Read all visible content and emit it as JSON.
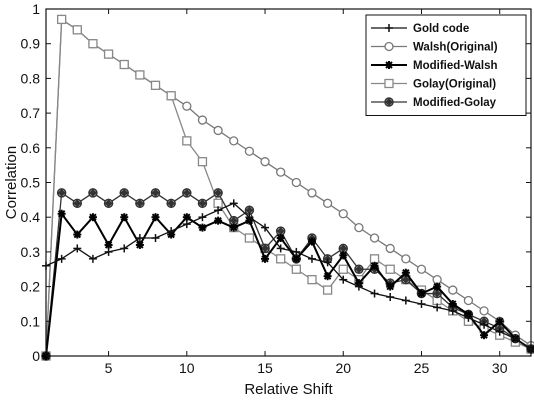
{
  "chart_data": {
    "type": "line",
    "xlabel": "Relative Shift",
    "ylabel": "Correlation",
    "xlim": [
      1,
      32
    ],
    "ylim": [
      0,
      1
    ],
    "x_ticks": [
      5,
      10,
      15,
      20,
      25,
      30
    ],
    "x_tick_labels": [
      "5",
      "10",
      "15",
      "20",
      "25",
      "30"
    ],
    "y_ticks": [
      0,
      0.1,
      0.2,
      0.3,
      0.4,
      0.5,
      0.6,
      0.7,
      0.8,
      0.9,
      1
    ],
    "y_tick_labels": [
      "0",
      "0.1",
      "0.2",
      "0.3",
      "0.4",
      "0.5",
      "0.6",
      "0.7",
      "0.8",
      "0.9",
      "1"
    ],
    "grid": false,
    "legend_position": "top-right",
    "series": [
      {
        "name": "Gold code",
        "marker": "plus",
        "color": "#111111",
        "x": [
          1,
          2,
          3,
          4,
          5,
          6,
          7,
          8,
          9,
          10,
          11,
          12,
          13,
          14,
          15,
          16,
          17,
          18,
          19,
          20,
          21,
          22,
          23,
          24,
          25,
          26,
          27,
          28,
          29,
          30,
          31,
          32
        ],
        "values": [
          0.26,
          0.28,
          0.31,
          0.28,
          0.3,
          0.31,
          0.34,
          0.34,
          0.36,
          0.38,
          0.4,
          0.42,
          0.44,
          0.4,
          0.37,
          0.31,
          0.3,
          0.28,
          0.27,
          0.22,
          0.2,
          0.18,
          0.17,
          0.16,
          0.15,
          0.14,
          0.13,
          0.11,
          0.09,
          0.07,
          0.05,
          0.02
        ]
      },
      {
        "name": "Walsh(Original)",
        "marker": "circle",
        "color": "#777777",
        "x": [
          1,
          2,
          3,
          4,
          5,
          6,
          7,
          8,
          9,
          10,
          11,
          12,
          13,
          14,
          15,
          16,
          17,
          18,
          19,
          20,
          21,
          22,
          23,
          24,
          25,
          26,
          27,
          28,
          29,
          30,
          31,
          32
        ],
        "values": [
          0.0,
          0.97,
          0.94,
          0.9,
          0.87,
          0.84,
          0.81,
          0.78,
          0.75,
          0.72,
          0.68,
          0.65,
          0.62,
          0.59,
          0.56,
          0.53,
          0.5,
          0.47,
          0.44,
          0.41,
          0.37,
          0.34,
          0.31,
          0.28,
          0.25,
          0.22,
          0.19,
          0.16,
          0.13,
          0.1,
          0.06,
          0.03
        ]
      },
      {
        "name": "Modified-Walsh",
        "marker": "star",
        "color": "#000000",
        "x": [
          1,
          2,
          3,
          4,
          5,
          6,
          7,
          8,
          9,
          10,
          11,
          12,
          13,
          14,
          15,
          16,
          17,
          18,
          19,
          20,
          21,
          22,
          23,
          24,
          25,
          26,
          27,
          28,
          29,
          30,
          31,
          32
        ],
        "values": [
          0.0,
          0.41,
          0.35,
          0.4,
          0.32,
          0.4,
          0.32,
          0.4,
          0.35,
          0.4,
          0.37,
          0.39,
          0.37,
          0.39,
          0.28,
          0.34,
          0.28,
          0.33,
          0.23,
          0.29,
          0.21,
          0.26,
          0.2,
          0.24,
          0.18,
          0.2,
          0.15,
          0.12,
          0.06,
          0.1,
          0.05,
          0.02
        ]
      },
      {
        "name": "Golay(Original)",
        "marker": "square",
        "color": "#888888",
        "x": [
          1,
          2,
          3,
          4,
          5,
          6,
          7,
          8,
          9,
          10,
          11,
          12,
          13,
          14,
          15,
          16,
          17,
          18,
          19,
          20,
          21,
          22,
          23,
          24,
          25,
          26,
          27,
          28,
          29,
          30,
          31,
          32
        ],
        "values": [
          0.0,
          0.97,
          0.94,
          0.9,
          0.87,
          0.84,
          0.81,
          0.78,
          0.75,
          0.62,
          0.56,
          0.44,
          0.37,
          0.34,
          0.31,
          0.28,
          0.25,
          0.22,
          0.19,
          0.25,
          0.22,
          0.28,
          0.25,
          0.22,
          0.19,
          0.16,
          0.13,
          0.1,
          0.08,
          0.06,
          0.04,
          0.02
        ]
      },
      {
        "name": "Modified-Golay",
        "marker": "diamond-circle",
        "color": "#333333",
        "x": [
          1,
          2,
          3,
          4,
          5,
          6,
          7,
          8,
          9,
          10,
          11,
          12,
          13,
          14,
          15,
          16,
          17,
          18,
          19,
          20,
          21,
          22,
          23,
          24,
          25,
          26,
          27,
          28,
          29,
          30,
          31,
          32
        ],
        "values": [
          0.0,
          0.47,
          0.44,
          0.47,
          0.44,
          0.47,
          0.44,
          0.47,
          0.44,
          0.47,
          0.44,
          0.47,
          0.39,
          0.42,
          0.31,
          0.36,
          0.28,
          0.34,
          0.28,
          0.31,
          0.25,
          0.25,
          0.21,
          0.22,
          0.18,
          0.18,
          0.14,
          0.12,
          0.1,
          0.08,
          0.05,
          0.02
        ]
      }
    ]
  }
}
